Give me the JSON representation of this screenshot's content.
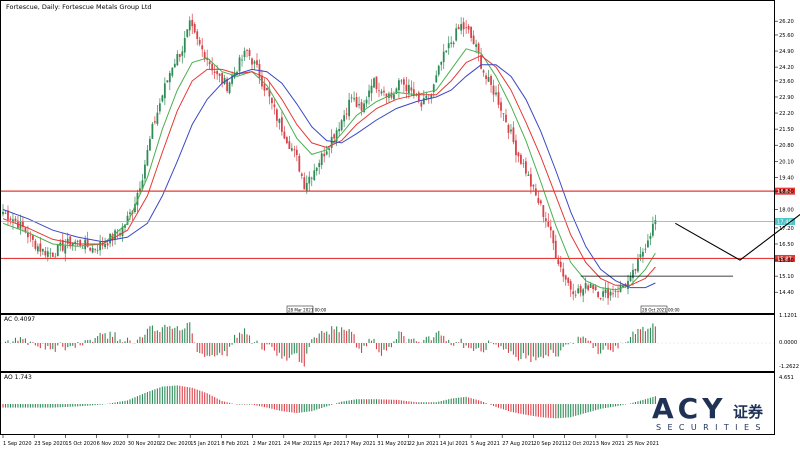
{
  "window": {
    "title": "Fortescue, Daily: Fortescue Metals Group Ltd"
  },
  "colors": {
    "bull": "#2e8b57",
    "bear": "#d8434a",
    "ma_fast": "#4caf50",
    "ma_mid": "#e53935",
    "ma_slow": "#3b48c4",
    "support_line": "#e53935",
    "current_line": "#4fc3c7",
    "arrow": "#000000",
    "grid": "#d0d0d0"
  },
  "chart_data": [
    {
      "type": "candlestick",
      "title": "Fortescue, Daily: Fortescue Metals Group Ltd",
      "ylim": [
        13.8,
        26.6
      ],
      "y_ticks": [
        "26.20",
        "25.60",
        "24.90",
        "24.20",
        "23.60",
        "22.90",
        "22.20",
        "21.50",
        "20.80",
        "20.10",
        "19.40",
        "18.80",
        "18.00",
        "17.20",
        "16.50",
        "15.80",
        "15.10",
        "14.40"
      ],
      "x_ticks": [
        "1 Sep 2020",
        "23 Sep 2020",
        "15 Oct 2020",
        "6 Nov 2020",
        "30 Nov 2020",
        "22 Dec 2020",
        "15 Jan 2021",
        "8 Feb 2021",
        "2 Mar 2021",
        "24 Mar 2021",
        "15 Apr 2021",
        "7 May 2021",
        "31 May 2021",
        "22 Jun 2021",
        "14 Jul 2021",
        "5 Aug 2021",
        "27 Aug 2021",
        "20 Sep 2021",
        "12 Oct 2021",
        "3 Nov 2021",
        "25 Nov 2021"
      ],
      "close_path": [
        [
          0,
          17.9
        ],
        [
          4,
          17.6
        ],
        [
          8,
          17.2
        ],
        [
          12,
          16.6
        ],
        [
          16,
          16.2
        ],
        [
          20,
          16.1
        ],
        [
          24,
          16.4
        ],
        [
          28,
          16.6
        ],
        [
          32,
          16.5
        ],
        [
          36,
          16.3
        ],
        [
          40,
          16.5
        ],
        [
          44,
          16.8
        ],
        [
          48,
          17.2
        ],
        [
          52,
          18.0
        ],
        [
          56,
          19.5
        ],
        [
          60,
          21.5
        ],
        [
          64,
          23.0
        ],
        [
          68,
          24.3
        ],
        [
          72,
          25.0
        ],
        [
          75,
          26.0
        ],
        [
          78,
          25.3
        ],
        [
          82,
          24.6
        ],
        [
          86,
          23.8
        ],
        [
          90,
          23.4
        ],
        [
          94,
          24.2
        ],
        [
          98,
          24.9
        ],
        [
          102,
          24.1
        ],
        [
          106,
          23.1
        ],
        [
          110,
          22.0
        ],
        [
          114,
          21.1
        ],
        [
          118,
          20.2
        ],
        [
          121,
          19.1
        ],
        [
          124,
          19.6
        ],
        [
          128,
          20.3
        ],
        [
          132,
          21.1
        ],
        [
          136,
          21.9
        ],
        [
          140,
          22.9
        ],
        [
          144,
          22.2
        ],
        [
          148,
          23.6
        ],
        [
          152,
          23.3
        ],
        [
          156,
          22.9
        ],
        [
          160,
          23.6
        ],
        [
          164,
          23.1
        ],
        [
          168,
          22.5
        ],
        [
          172,
          23.0
        ],
        [
          176,
          24.4
        ],
        [
          180,
          25.3
        ],
        [
          184,
          26.0
        ],
        [
          187,
          25.7
        ],
        [
          190,
          25.0
        ],
        [
          194,
          23.7
        ],
        [
          198,
          23.0
        ],
        [
          202,
          21.9
        ],
        [
          206,
          20.6
        ],
        [
          210,
          19.7
        ],
        [
          213,
          18.8
        ],
        [
          216,
          18.1
        ],
        [
          219,
          17.3
        ],
        [
          222,
          16.1
        ],
        [
          225,
          15.2
        ],
        [
          228,
          14.6
        ],
        [
          232,
          14.4
        ],
        [
          236,
          14.8
        ],
        [
          240,
          14.3
        ],
        [
          244,
          14.4
        ],
        [
          248,
          14.6
        ],
        [
          252,
          14.9
        ],
        [
          256,
          15.9
        ],
        [
          259,
          16.8
        ],
        [
          262,
          17.5
        ]
      ],
      "moving_averages": [
        {
          "color_key": "ma_fast",
          "values": [
            [
              0,
              17.4
            ],
            [
              10,
              17.0
            ],
            [
              20,
              16.5
            ],
            [
              30,
              16.4
            ],
            [
              40,
              16.5
            ],
            [
              50,
              17.4
            ],
            [
              58,
              19.4
            ],
            [
              64,
              21.5
            ],
            [
              70,
              23.2
            ],
            [
              76,
              24.4
            ],
            [
              82,
              24.6
            ],
            [
              88,
              24.0
            ],
            [
              94,
              23.8
            ],
            [
              100,
              24.0
            ],
            [
              106,
              23.4
            ],
            [
              112,
              22.3
            ],
            [
              118,
              21.1
            ],
            [
              124,
              20.4
            ],
            [
              130,
              20.6
            ],
            [
              136,
              21.3
            ],
            [
              142,
              22.1
            ],
            [
              150,
              22.7
            ],
            [
              158,
              23.1
            ],
            [
              166,
              23.0
            ],
            [
              174,
              23.2
            ],
            [
              180,
              24.1
            ],
            [
              186,
              25.0
            ],
            [
              192,
              24.8
            ],
            [
              198,
              23.8
            ],
            [
              204,
              22.5
            ],
            [
              210,
              21.0
            ],
            [
              216,
              19.2
            ],
            [
              222,
              17.3
            ],
            [
              228,
              15.7
            ],
            [
              234,
              14.9
            ],
            [
              240,
              14.6
            ],
            [
              246,
              14.5
            ],
            [
              252,
              14.7
            ],
            [
              258,
              15.4
            ],
            [
              262,
              16.1
            ]
          ]
        },
        {
          "color_key": "ma_mid",
          "values": [
            [
              0,
              17.6
            ],
            [
              10,
              17.2
            ],
            [
              20,
              16.7
            ],
            [
              30,
              16.5
            ],
            [
              40,
              16.5
            ],
            [
              50,
              17.1
            ],
            [
              58,
              18.6
            ],
            [
              64,
              20.5
            ],
            [
              70,
              22.3
            ],
            [
              76,
              23.6
            ],
            [
              82,
              24.1
            ],
            [
              88,
              24.1
            ],
            [
              94,
              23.9
            ],
            [
              100,
              24.0
            ],
            [
              106,
              23.7
            ],
            [
              112,
              22.8
            ],
            [
              118,
              21.7
            ],
            [
              124,
              20.9
            ],
            [
              130,
              20.7
            ],
            [
              136,
              21.0
            ],
            [
              142,
              21.7
            ],
            [
              150,
              22.4
            ],
            [
              158,
              22.8
            ],
            [
              166,
              23.0
            ],
            [
              174,
              23.0
            ],
            [
              180,
              23.6
            ],
            [
              186,
              24.4
            ],
            [
              192,
              24.7
            ],
            [
              198,
              24.2
            ],
            [
              204,
              23.2
            ],
            [
              210,
              21.8
            ],
            [
              216,
              20.3
            ],
            [
              222,
              18.6
            ],
            [
              228,
              16.9
            ],
            [
              234,
              15.7
            ],
            [
              240,
              15.0
            ],
            [
              246,
              14.7
            ],
            [
              252,
              14.7
            ],
            [
              258,
              15.0
            ],
            [
              262,
              15.5
            ]
          ]
        },
        {
          "color_key": "ma_slow",
          "values": [
            [
              0,
              18.0
            ],
            [
              10,
              17.6
            ],
            [
              20,
              17.1
            ],
            [
              30,
              16.8
            ],
            [
              40,
              16.6
            ],
            [
              50,
              16.8
            ],
            [
              58,
              17.4
            ],
            [
              64,
              18.6
            ],
            [
              70,
              20.1
            ],
            [
              76,
              21.7
            ],
            [
              82,
              22.8
            ],
            [
              88,
              23.5
            ],
            [
              94,
              23.9
            ],
            [
              100,
              24.1
            ],
            [
              106,
              24.0
            ],
            [
              112,
              23.5
            ],
            [
              118,
              22.6
            ],
            [
              124,
              21.6
            ],
            [
              130,
              21.0
            ],
            [
              136,
              20.9
            ],
            [
              142,
              21.3
            ],
            [
              150,
              21.9
            ],
            [
              158,
              22.4
            ],
            [
              166,
              22.7
            ],
            [
              174,
              22.9
            ],
            [
              180,
              23.2
            ],
            [
              186,
              23.8
            ],
            [
              192,
              24.3
            ],
            [
              198,
              24.3
            ],
            [
              204,
              23.8
            ],
            [
              210,
              22.8
            ],
            [
              216,
              21.4
            ],
            [
              222,
              19.7
            ],
            [
              228,
              17.9
            ],
            [
              234,
              16.4
            ],
            [
              240,
              15.4
            ],
            [
              246,
              14.9
            ],
            [
              252,
              14.6
            ],
            [
              258,
              14.6
            ],
            [
              262,
              14.8
            ]
          ]
        }
      ],
      "levels": [
        {
          "value": 18.8,
          "label": "18.80",
          "color_key": "support_line"
        },
        {
          "value": 17.48,
          "label": "17.48",
          "color_key": "current_line"
        },
        {
          "value": 15.87,
          "label": "15.87",
          "color_key": "support_line"
        },
        {
          "value": 15.1,
          "label": "",
          "color_key": "arrow",
          "from_bar": 232
        }
      ],
      "projection": [
        [
          270,
          17.4
        ],
        [
          296,
          15.8
        ],
        [
          330,
          18.6
        ]
      ],
      "markers": [
        "28 Mar 2021 00:00",
        "28 Oct 2021 00:00"
      ]
    },
    {
      "type": "bar",
      "title": "AC 0.4097",
      "ylim": [
        -1.2622,
        1.1201
      ],
      "y_ticks": [
        "1.1201",
        "0.0000",
        "-1.2622"
      ]
    },
    {
      "type": "bar",
      "title": "AO 1.743",
      "ylim": [
        -3.5,
        4.651
      ],
      "y_ticks": [
        "4.651"
      ]
    }
  ],
  "watermark": {
    "brand": "ACY",
    "cn": "证券",
    "sub": "SECURITIES"
  }
}
